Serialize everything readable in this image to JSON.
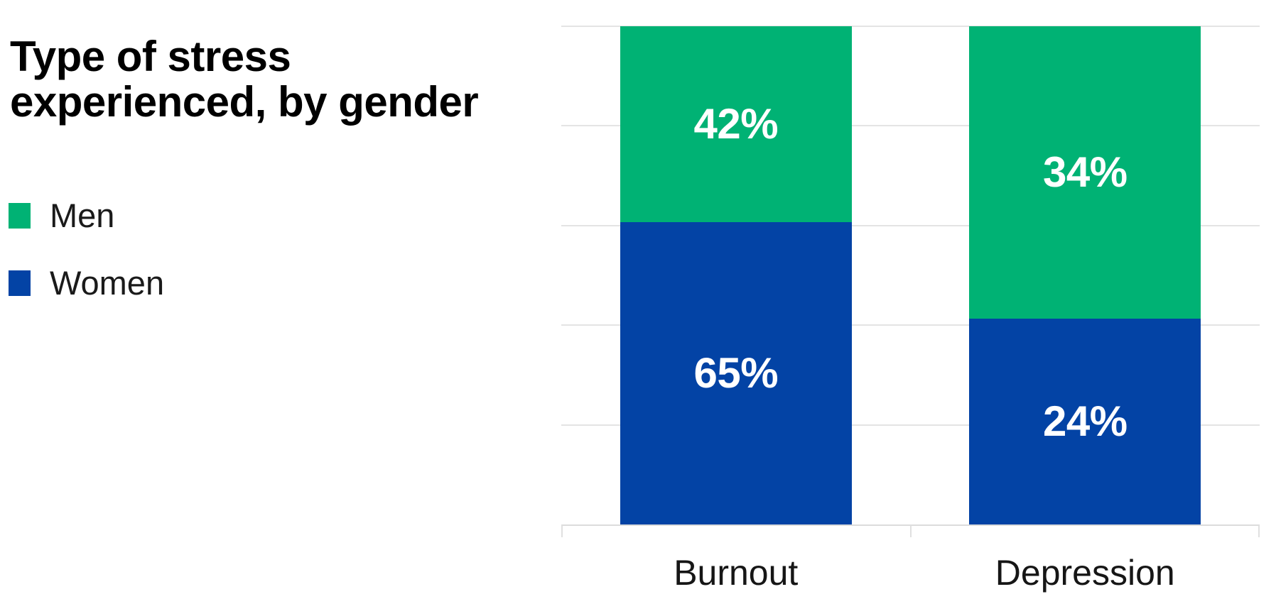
{
  "title": {
    "text": "Type of stress experienced, by gender",
    "lines": [
      "Type of stress",
      "experienced, by gender"
    ]
  },
  "legend": {
    "position": "left",
    "items": [
      {
        "label": "Men",
        "color": "#00b274"
      },
      {
        "label": "Women",
        "color": "#0343a5"
      }
    ]
  },
  "chart_data": {
    "type": "bar",
    "subtype": "stacked-100-percent",
    "title": "Type of stress experienced, by gender",
    "categories": [
      "Burnout",
      "Depression"
    ],
    "series": [
      {
        "name": "Men",
        "color": "#00b274",
        "values": [
          42,
          34
        ],
        "labels": [
          "42%",
          "34%"
        ],
        "stack_position": "top"
      },
      {
        "name": "Women",
        "color": "#0343a5",
        "values": [
          65,
          24
        ],
        "labels": [
          "65%",
          "24%"
        ],
        "stack_position": "bottom"
      }
    ],
    "value_label_color": "#ffffff",
    "axis": {
      "y_tick_labels_visible": false,
      "x_tick_labels_visible": true
    },
    "grid": {
      "orientation": "horizontal",
      "line_count": 6,
      "color": "#e4e4e4"
    },
    "legend_position": "left"
  },
  "colors": {
    "background": "#ffffff",
    "men_green": "#00b274",
    "women_blue": "#0343a5",
    "gridline": "#e4e4e4",
    "axis": "#dcdcdc",
    "title_text": "#000000",
    "label_text": "#161616",
    "bar_value_text": "#ffffff"
  }
}
